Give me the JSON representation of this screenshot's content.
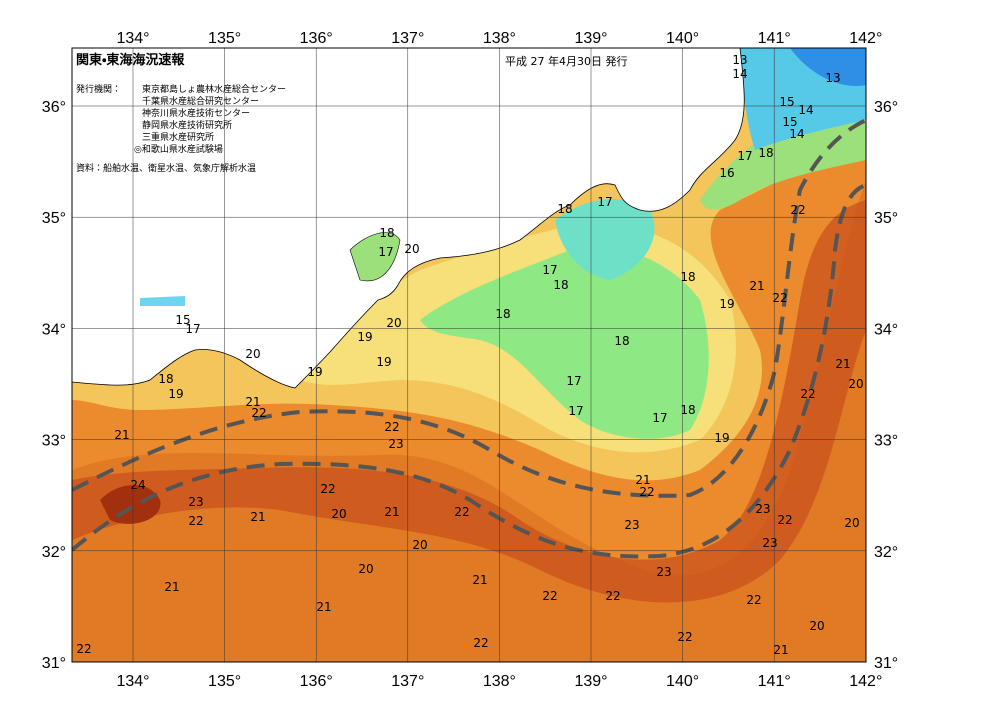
{
  "header": {
    "title": "関東・東海海況速報",
    "issue": "平成 27 年4月30日 発行"
  },
  "issuers": {
    "label": "発行機関：",
    "list": [
      "東京都島しょ農林水産総合センター",
      "千葉県水産総合研究センター",
      "神奈川県水産技術センター",
      "静岡県水産技術研究所",
      "三重県水産研究所",
      "◎和歌山県水産試験場"
    ]
  },
  "source": "資料：船舶水温、衛星水温、気象庁解析水温",
  "lon_ticks": [
    {
      "value": 134,
      "label": "134°"
    },
    {
      "value": 135,
      "label": "135°"
    },
    {
      "value": 136,
      "label": "136°"
    },
    {
      "value": 137,
      "label": "137°"
    },
    {
      "value": 138,
      "label": "138°"
    },
    {
      "value": 139,
      "label": "139°"
    },
    {
      "value": 140,
      "label": "140°"
    },
    {
      "value": 141,
      "label": "141°"
    },
    {
      "value": 142,
      "label": "142°"
    }
  ],
  "lat_ticks": [
    {
      "value": 36,
      "label": "36°"
    },
    {
      "value": 35,
      "label": "35°"
    },
    {
      "value": 34,
      "label": "34°"
    },
    {
      "value": 33,
      "label": "33°"
    },
    {
      "value": 32,
      "label": "32°"
    },
    {
      "value": 31,
      "label": "31°"
    }
  ],
  "contour_labels": [
    "13",
    "14",
    "13",
    "15",
    "14",
    "15",
    "14",
    "18",
    "17",
    "16",
    "22",
    "18",
    "17",
    "18",
    "20",
    "17",
    "17",
    "18",
    "18",
    "21",
    "22",
    "19",
    "18",
    "20",
    "15",
    "17",
    "19",
    "18",
    "20",
    "19",
    "19",
    "18",
    "19",
    "21",
    "20",
    "17",
    "22",
    "21",
    "22",
    "17",
    "17",
    "18",
    "22",
    "23",
    "21",
    "19",
    "21",
    "22",
    "24",
    "23",
    "22",
    "22",
    "21",
    "20",
    "21",
    "22",
    "23",
    "22",
    "20",
    "23",
    "23",
    "20",
    "20",
    "23",
    "21",
    "21",
    "22",
    "22",
    "22",
    "21",
    "20",
    "22",
    "22",
    "22",
    "21"
  ]
}
